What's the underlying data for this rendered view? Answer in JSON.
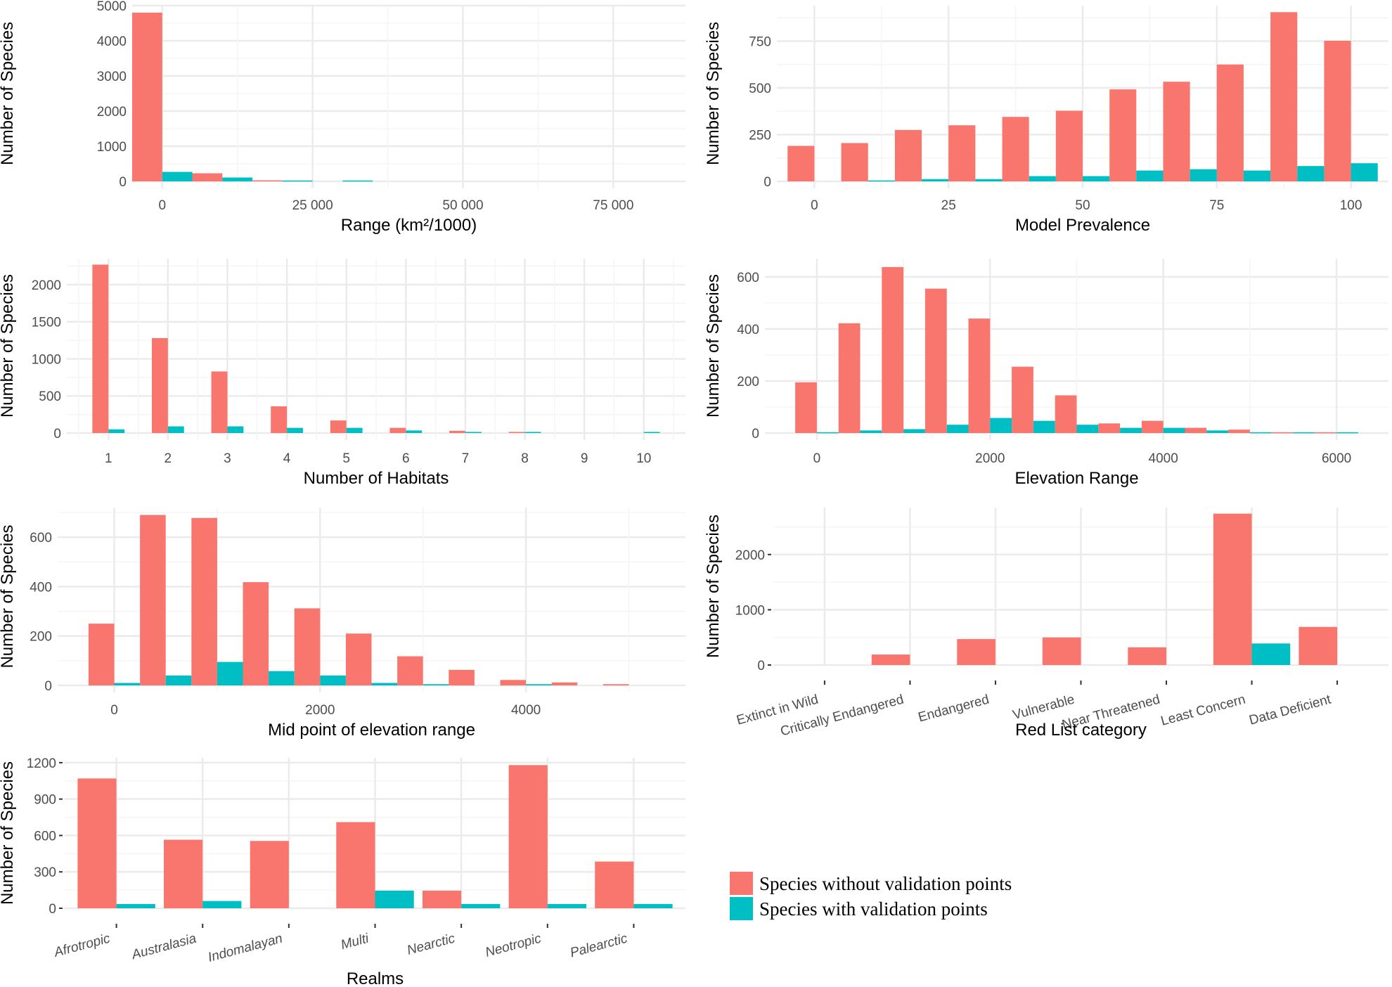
{
  "colors": {
    "without": "#F8766D",
    "with": "#00BFC4",
    "grid_major": "#EBEBEB",
    "grid_minor": "#F5F5F5",
    "tick_text": "#4D4D4D",
    "title_text": "#000000"
  },
  "legend": {
    "items": [
      {
        "label": "Species without validation points",
        "color": "#F8766D"
      },
      {
        "label": "Species with validation points",
        "color": "#00BFC4"
      }
    ]
  },
  "chart_data": [
    {
      "id": "range",
      "type": "bar",
      "title": "",
      "xlabel": "Range (km²/1000)",
      "ylabel": "Number of Species",
      "xlim": [
        -5000,
        87000
      ],
      "ylim": [
        0,
        5000
      ],
      "xticks": [
        0,
        25000,
        50000,
        75000
      ],
      "xtick_labels": [
        "0",
        "25 000",
        "50 000",
        "75 000"
      ],
      "yticks": [
        0,
        1000,
        2000,
        3000,
        4000,
        5000
      ],
      "ytick_labels": [
        "0",
        "1000",
        "2000",
        "3000",
        "4000",
        "5000"
      ],
      "bin_width": 10000,
      "x": [
        0,
        10000,
        20000,
        30000
      ],
      "series": [
        {
          "name": "Species without validation points",
          "values": [
            4800,
            230,
            30,
            0
          ]
        },
        {
          "name": "Species with validation points",
          "values": [
            270,
            110,
            25,
            25
          ]
        }
      ],
      "grid": true
    },
    {
      "id": "prevalence",
      "type": "bar",
      "title": "",
      "xlabel": "Model Prevalence",
      "ylabel": "Number of Species",
      "xlim": [
        -7,
        107
      ],
      "ylim": [
        0,
        940
      ],
      "xticks": [
        0,
        25,
        50,
        75,
        100
      ],
      "xtick_labels": [
        "0",
        "25",
        "50",
        "75",
        "100"
      ],
      "yticks": [
        0,
        250,
        500,
        750
      ],
      "ytick_labels": [
        "0",
        "250",
        "500",
        "750"
      ],
      "bin_width": 10,
      "x": [
        0,
        10,
        20,
        30,
        40,
        50,
        60,
        70,
        80,
        90,
        100
      ],
      "series": [
        {
          "name": "Species without validation points",
          "values": [
            190,
            205,
            275,
            300,
            345,
            378,
            492,
            533,
            625,
            905,
            752
          ]
        },
        {
          "name": "Species with validation points",
          "values": [
            0,
            5,
            12,
            12,
            28,
            28,
            58,
            65,
            58,
            82,
            97
          ]
        }
      ],
      "grid": true
    },
    {
      "id": "habitats",
      "type": "bar",
      "title": "",
      "xlabel": "Number of Habitats",
      "ylabel": "Number of Species",
      "xlim": [
        0.3,
        10.7
      ],
      "ylim": [
        0,
        2350
      ],
      "xticks": [
        1,
        2,
        3,
        4,
        5,
        6,
        7,
        8,
        9,
        10
      ],
      "xtick_labels": [
        "1",
        "2",
        "3",
        "4",
        "5",
        "6",
        "7",
        "8",
        "9",
        "10"
      ],
      "yticks": [
        0,
        500,
        1000,
        1500,
        2000
      ],
      "ytick_labels": [
        "0",
        "500",
        "1000",
        "1500",
        "2000"
      ],
      "bin_width": 0.5,
      "x": [
        1,
        2,
        3,
        4,
        5,
        6,
        7,
        8,
        9,
        10
      ],
      "series": [
        {
          "name": "Species without validation points",
          "values": [
            2270,
            1280,
            830,
            360,
            170,
            70,
            30,
            15,
            0,
            0
          ]
        },
        {
          "name": "Species with validation points",
          "values": [
            50,
            90,
            90,
            70,
            70,
            35,
            15,
            15,
            0,
            15
          ]
        }
      ],
      "grid": true
    },
    {
      "id": "elevation_range",
      "type": "bar",
      "title": "",
      "xlabel": "Elevation Range",
      "ylabel": "Number of Species",
      "xlim": [
        -600,
        6600
      ],
      "ylim": [
        0,
        670
      ],
      "xticks": [
        0,
        2000,
        4000,
        6000
      ],
      "xtick_labels": [
        "0",
        "2000",
        "4000",
        "6000"
      ],
      "yticks": [
        0,
        200,
        400,
        600
      ],
      "ytick_labels": [
        "0",
        "200",
        "400",
        "600"
      ],
      "bin_width": 500,
      "x": [
        0,
        500,
        1000,
        1500,
        2000,
        2500,
        3000,
        3500,
        4000,
        4500,
        5000,
        5500,
        6000
      ],
      "series": [
        {
          "name": "Species without validation points",
          "values": [
            195,
            422,
            638,
            555,
            440,
            255,
            145,
            37,
            47,
            20,
            13,
            3,
            3
          ]
        },
        {
          "name": "Species with validation points",
          "values": [
            3,
            10,
            15,
            32,
            58,
            47,
            32,
            20,
            20,
            10,
            3,
            3,
            3
          ]
        }
      ],
      "grid": true
    },
    {
      "id": "midpoint",
      "type": "bar",
      "title": "",
      "xlabel": "Mid point of elevation range",
      "ylabel": "Number of Species",
      "xlim": [
        -550,
        5550
      ],
      "ylim": [
        0,
        720
      ],
      "xticks": [
        0,
        2000,
        4000
      ],
      "xtick_labels": [
        "0",
        "2000",
        "4000"
      ],
      "yticks": [
        0,
        200,
        400,
        600
      ],
      "ytick_labels": [
        "0",
        "200",
        "400",
        "600"
      ],
      "bin_width": 500,
      "x": [
        0,
        500,
        1000,
        1500,
        2000,
        2500,
        3000,
        3500,
        4000,
        4500,
        5000
      ],
      "series": [
        {
          "name": "Species without validation points",
          "values": [
            250,
            690,
            678,
            418,
            312,
            210,
            118,
            63,
            22,
            12,
            5
          ]
        },
        {
          "name": "Species with validation points",
          "values": [
            10,
            40,
            95,
            58,
            40,
            10,
            5,
            0,
            5,
            0,
            0
          ]
        }
      ],
      "grid": true
    },
    {
      "id": "redlist",
      "type": "bar",
      "title": "",
      "xlabel": "Red List category",
      "ylabel": "Number of Species",
      "ylim": [
        0,
        2850
      ],
      "yticks": [
        0,
        1000,
        2000
      ],
      "ytick_labels": [
        "0",
        "1000",
        "2000"
      ],
      "categories": [
        "Extinct in Wild",
        "Critically Endangered",
        "Endangered",
        "Vulnerable",
        "Near Threatened",
        "Least Concern",
        "Data Deficient"
      ],
      "series": [
        {
          "name": "Species without validation points",
          "values": [
            0,
            190,
            470,
            500,
            320,
            2740,
            690
          ]
        },
        {
          "name": "Species with validation points",
          "values": [
            0,
            0,
            0,
            0,
            0,
            390,
            0
          ]
        }
      ],
      "grid": true
    },
    {
      "id": "realms",
      "type": "bar",
      "title": "",
      "xlabel": "Realms",
      "ylabel": "Number of Species",
      "ylim": [
        0,
        1240
      ],
      "yticks": [
        0,
        300,
        600,
        900,
        1200
      ],
      "ytick_labels": [
        "0",
        "300",
        "600",
        "900",
        "1200"
      ],
      "categories": [
        "Afrotropic",
        "Australasia",
        "Indomalayan",
        "Multi",
        "Nearctic",
        "Neotropic",
        "Palearctic"
      ],
      "series": [
        {
          "name": "Species without validation points",
          "values": [
            1070,
            565,
            555,
            710,
            145,
            1180,
            385
          ]
        },
        {
          "name": "Species with validation points",
          "values": [
            35,
            60,
            0,
            145,
            35,
            35,
            35
          ]
        }
      ],
      "grid": true
    }
  ]
}
